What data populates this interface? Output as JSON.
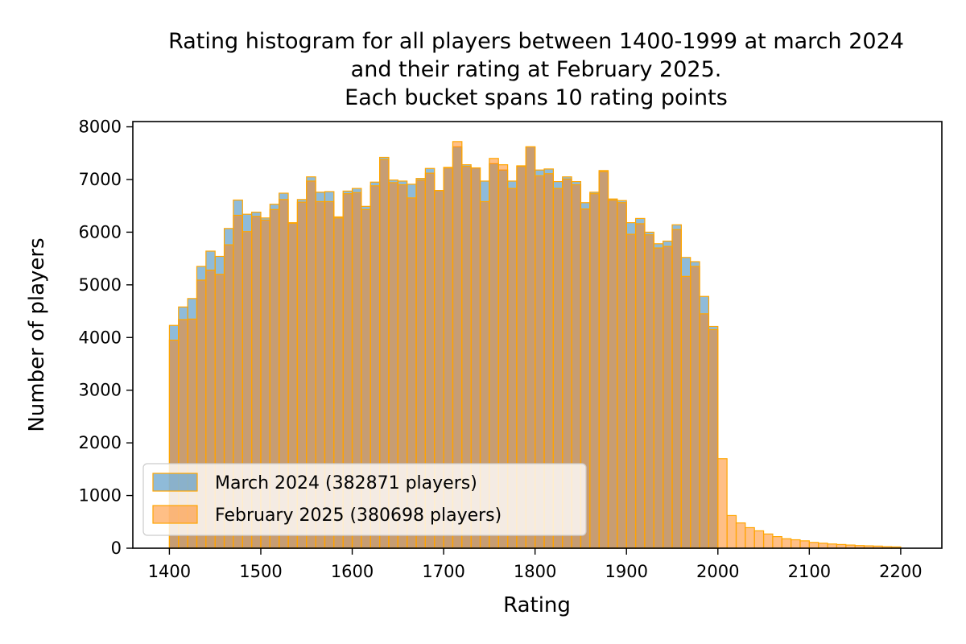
{
  "chart_data": {
    "type": "bar",
    "title_lines": [
      "Rating histogram for all players between 1400-1999 at march 2024",
      "and their rating at February 2025.",
      "Each bucket spans 10 rating points"
    ],
    "xlabel": "Rating",
    "ylabel": "Number of players",
    "xlim": [
      1360,
      2245
    ],
    "ylim": [
      0,
      8100
    ],
    "bin_width": 10,
    "x_ticks": [
      1400,
      1500,
      1600,
      1700,
      1800,
      1900,
      2000,
      2100,
      2200
    ],
    "y_ticks": [
      0,
      1000,
      2000,
      3000,
      4000,
      5000,
      6000,
      7000,
      8000
    ],
    "bin_starts": [
      1400,
      1410,
      1420,
      1430,
      1440,
      1450,
      1460,
      1470,
      1480,
      1490,
      1500,
      1510,
      1520,
      1530,
      1540,
      1550,
      1560,
      1570,
      1580,
      1590,
      1600,
      1610,
      1620,
      1630,
      1640,
      1650,
      1660,
      1670,
      1680,
      1690,
      1700,
      1710,
      1720,
      1730,
      1740,
      1750,
      1760,
      1770,
      1780,
      1790,
      1800,
      1810,
      1820,
      1830,
      1840,
      1850,
      1860,
      1870,
      1880,
      1890,
      1900,
      1910,
      1920,
      1930,
      1940,
      1950,
      1960,
      1970,
      1980,
      1990,
      2000,
      2010,
      2020,
      2030,
      2040,
      2050,
      2060,
      2070,
      2080,
      2090,
      2100,
      2110,
      2120,
      2130,
      2140,
      2150,
      2160,
      2170,
      2180,
      2190
    ],
    "series": [
      {
        "name": "March 2024 (382871 players)",
        "color": "#1f77b4",
        "values": [
          4230,
          4580,
          4740,
          5350,
          5640,
          5540,
          6070,
          6610,
          6340,
          6380,
          6270,
          6530,
          6740,
          6180,
          6620,
          7050,
          6760,
          6770,
          6290,
          6780,
          6830,
          6490,
          6950,
          7420,
          6990,
          6970,
          6910,
          7020,
          7210,
          6790,
          7230,
          7620,
          7280,
          7220,
          6970,
          7300,
          7180,
          6970,
          7260,
          7620,
          7180,
          7200,
          6960,
          7050,
          6960,
          6560,
          6760,
          7170,
          6630,
          6600,
          6180,
          6260,
          6000,
          5780,
          5830,
          6140,
          5520,
          5440,
          4780,
          4210,
          0,
          0,
          0,
          0,
          0,
          0,
          0,
          0,
          0,
          0,
          0,
          0,
          0,
          0,
          0,
          0,
          0,
          0,
          0,
          0
        ]
      },
      {
        "name": "February 2025 (380698 players)",
        "color": "#ff7f0e",
        "values": [
          3950,
          4340,
          4350,
          5090,
          5280,
          5200,
          5760,
          6320,
          6010,
          6300,
          6230,
          6430,
          6620,
          6170,
          6570,
          6970,
          6580,
          6580,
          6270,
          6730,
          6750,
          6430,
          6880,
          7380,
          6940,
          6900,
          6650,
          6990,
          7120,
          6790,
          7220,
          7720,
          7250,
          7220,
          6580,
          7400,
          7280,
          6830,
          7250,
          7620,
          7070,
          7110,
          6830,
          7010,
          6900,
          6440,
          6730,
          7150,
          6610,
          6560,
          5960,
          6160,
          5950,
          5700,
          5730,
          6050,
          5160,
          5350,
          4450,
          4150,
          1700,
          620,
          480,
          390,
          330,
          270,
          220,
          180,
          160,
          140,
          110,
          95,
          80,
          70,
          60,
          50,
          45,
          40,
          30,
          25
        ]
      }
    ],
    "legend_position": "lower-left",
    "grid": false
  }
}
